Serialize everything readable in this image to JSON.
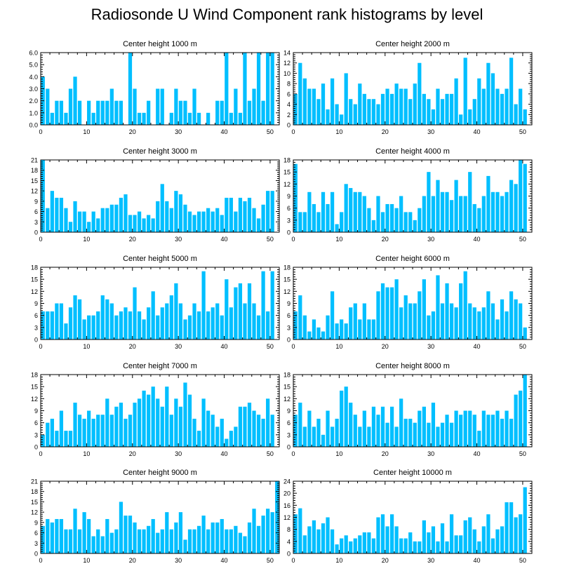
{
  "title": "Radiosonde U Wind Component rank histograms by level",
  "bar_color": "#00bfff",
  "chart_data": [
    {
      "type": "bar",
      "title": "Center height 1000 m",
      "xlabel": "",
      "ylabel": "",
      "xlim": [
        0,
        52
      ],
      "ylim": [
        0,
        6
      ],
      "yticks": [
        0,
        1,
        2,
        3,
        4,
        5,
        6
      ],
      "ytick_labels": [
        "0.0",
        "1.0",
        "2.0",
        "3.0",
        "4.0",
        "5.0",
        "6.0"
      ],
      "xticks": [
        0,
        10,
        20,
        30,
        40,
        50
      ],
      "values": [
        4,
        3,
        1,
        2,
        2,
        1,
        3,
        4,
        2,
        0,
        2,
        1,
        2,
        2,
        2,
        3,
        2,
        2,
        0,
        6,
        3,
        1,
        1,
        2,
        0,
        3,
        3,
        0,
        1,
        3,
        2,
        2,
        1,
        3,
        1,
        0,
        1,
        0,
        2,
        2,
        6,
        1,
        3,
        1,
        6,
        2,
        3,
        6,
        2,
        6,
        6
      ]
    },
    {
      "type": "bar",
      "title": "Center height 2000 m",
      "xlabel": "",
      "ylabel": "",
      "xlim": [
        0,
        52
      ],
      "ylim": [
        0,
        14
      ],
      "yticks": [
        0,
        2,
        4,
        6,
        8,
        10,
        12,
        14
      ],
      "ytick_labels": [
        "0",
        "2",
        "4",
        "6",
        "8",
        "10",
        "12",
        "14"
      ],
      "xticks": [
        0,
        10,
        20,
        30,
        40,
        50
      ],
      "values": [
        6,
        12,
        9,
        7,
        7,
        5,
        8,
        3,
        9,
        4,
        2,
        10,
        5,
        4,
        8,
        6,
        5,
        5,
        4,
        6,
        7,
        6,
        8,
        7,
        7,
        5,
        8,
        12,
        6,
        5,
        3,
        7,
        5,
        6,
        6,
        9,
        2,
        13,
        3,
        5,
        9,
        7,
        12,
        10,
        7,
        6,
        7,
        13,
        4,
        7,
        3
      ]
    },
    {
      "type": "bar",
      "title": "Center height 3000 m",
      "xlabel": "",
      "ylabel": "",
      "xlim": [
        0,
        52
      ],
      "ylim": [
        0,
        21
      ],
      "yticks": [
        0,
        3,
        6,
        9,
        12,
        15,
        18,
        21
      ],
      "ytick_labels": [
        "0",
        "3",
        "6",
        "9",
        "12",
        "15",
        "18",
        "21"
      ],
      "xticks": [
        0,
        10,
        20,
        30,
        40,
        50
      ],
      "values": [
        21,
        7,
        12,
        10,
        10,
        7,
        3,
        9,
        6,
        6,
        3,
        6,
        4,
        7,
        7,
        8,
        8,
        10,
        11,
        5,
        5,
        6,
        4,
        5,
        4,
        9,
        14,
        9,
        7,
        12,
        11,
        8,
        6,
        5,
        6,
        6,
        7,
        6,
        7,
        5,
        10,
        10,
        6,
        10,
        9,
        10,
        7,
        4,
        8,
        12,
        12
      ]
    },
    {
      "type": "bar",
      "title": "Center height 4000 m",
      "xlabel": "",
      "ylabel": "",
      "xlim": [
        0,
        52
      ],
      "ylim": [
        0,
        18
      ],
      "yticks": [
        0,
        3,
        6,
        9,
        12,
        15,
        18
      ],
      "ytick_labels": [
        "0",
        "3",
        "6",
        "9",
        "12",
        "15",
        "18"
      ],
      "xticks": [
        0,
        10,
        20,
        30,
        40,
        50
      ],
      "values": [
        17,
        5,
        5,
        10,
        7,
        5,
        10,
        7,
        10,
        2,
        5,
        12,
        11,
        10,
        10,
        9,
        6,
        3,
        9,
        5,
        7,
        7,
        6,
        9,
        5,
        5,
        3,
        6,
        9,
        15,
        9,
        13,
        10,
        10,
        8,
        13,
        9,
        9,
        15,
        7,
        6,
        9,
        14,
        10,
        10,
        9,
        10,
        13,
        12,
        18,
        17
      ]
    },
    {
      "type": "bar",
      "title": "Center height 5000 m",
      "xlabel": "",
      "ylabel": "",
      "xlim": [
        0,
        52
      ],
      "ylim": [
        0,
        18
      ],
      "yticks": [
        0,
        3,
        6,
        9,
        12,
        15,
        18
      ],
      "ytick_labels": [
        "0",
        "3",
        "6",
        "9",
        "12",
        "15",
        "18"
      ],
      "xticks": [
        0,
        10,
        20,
        30,
        40,
        50
      ],
      "values": [
        7,
        7,
        7,
        9,
        9,
        4,
        8,
        11,
        10,
        5,
        6,
        6,
        7,
        11,
        10,
        9,
        6,
        7,
        8,
        7,
        13,
        7,
        5,
        8,
        12,
        6,
        8,
        9,
        11,
        14,
        9,
        5,
        6,
        9,
        7,
        17,
        7,
        8,
        9,
        6,
        15,
        8,
        13,
        14,
        9,
        14,
        9,
        6,
        17,
        7,
        17
      ]
    },
    {
      "type": "bar",
      "title": "Center height 6000 m",
      "xlabel": "",
      "ylabel": "",
      "xlim": [
        0,
        52
      ],
      "ylim": [
        0,
        18
      ],
      "yticks": [
        0,
        3,
        6,
        9,
        12,
        15,
        18
      ],
      "ytick_labels": [
        "0",
        "3",
        "6",
        "9",
        "12",
        "15",
        "18"
      ],
      "xticks": [
        0,
        10,
        20,
        30,
        40,
        50
      ],
      "values": [
        7,
        11,
        6,
        2,
        5,
        3,
        2,
        6,
        12,
        4,
        5,
        4,
        8,
        9,
        5,
        9,
        5,
        5,
        12,
        14,
        13,
        13,
        15,
        8,
        11,
        9,
        9,
        12,
        15,
        6,
        7,
        16,
        9,
        14,
        9,
        8,
        14,
        17,
        9,
        8,
        7,
        8,
        12,
        9,
        5,
        10,
        7,
        12,
        10,
        9,
        3
      ]
    },
    {
      "type": "bar",
      "title": "Center height 7000 m",
      "xlabel": "",
      "ylabel": "",
      "xlim": [
        0,
        52
      ],
      "ylim": [
        0,
        18
      ],
      "yticks": [
        0,
        3,
        6,
        9,
        12,
        15,
        18
      ],
      "ytick_labels": [
        "0",
        "3",
        "6",
        "9",
        "12",
        "15",
        "18"
      ],
      "xticks": [
        0,
        10,
        20,
        30,
        40,
        50
      ],
      "values": [
        3,
        6,
        7,
        4,
        9,
        4,
        4,
        11,
        8,
        7,
        9,
        7,
        8,
        8,
        12,
        8,
        10,
        11,
        7,
        8,
        11,
        12,
        14,
        13,
        15,
        12,
        10,
        15,
        8,
        12,
        10,
        16,
        13,
        7,
        4,
        12,
        9,
        8,
        5,
        7,
        2,
        4,
        5,
        10,
        10,
        11,
        9,
        8,
        7,
        12,
        8
      ]
    },
    {
      "type": "bar",
      "title": "Center height 8000 m",
      "xlabel": "",
      "ylabel": "",
      "xlim": [
        0,
        52
      ],
      "ylim": [
        0,
        18
      ],
      "yticks": [
        0,
        3,
        6,
        9,
        12,
        15,
        18
      ],
      "ytick_labels": [
        "0",
        "3",
        "6",
        "9",
        "12",
        "15",
        "18"
      ],
      "xticks": [
        0,
        10,
        20,
        30,
        40,
        50
      ],
      "values": [
        8,
        11,
        5,
        9,
        5,
        7,
        3,
        9,
        5,
        7,
        14,
        15,
        11,
        8,
        5,
        9,
        5,
        10,
        8,
        10,
        6,
        10,
        5,
        12,
        7,
        7,
        6,
        9,
        10,
        6,
        11,
        5,
        6,
        8,
        6,
        9,
        8,
        9,
        9,
        8,
        4,
        9,
        8,
        8,
        9,
        7,
        9,
        7,
        13,
        14,
        18
      ]
    },
    {
      "type": "bar",
      "title": "Center height 9000 m",
      "xlabel": "",
      "ylabel": "",
      "xlim": [
        0,
        52
      ],
      "ylim": [
        0,
        21
      ],
      "yticks": [
        0,
        3,
        6,
        9,
        12,
        15,
        18,
        21
      ],
      "ytick_labels": [
        "0",
        "3",
        "6",
        "9",
        "12",
        "15",
        "18",
        "21"
      ],
      "xticks": [
        0,
        10,
        20,
        30,
        40,
        50
      ],
      "values": [
        8,
        10,
        9,
        10,
        10,
        7,
        7,
        13,
        7,
        12,
        10,
        5,
        7,
        5,
        10,
        6,
        7,
        15,
        11,
        11,
        9,
        7,
        7,
        8,
        10,
        6,
        7,
        12,
        7,
        9,
        12,
        4,
        7,
        7,
        8,
        11,
        7,
        9,
        9,
        10,
        7,
        7,
        8,
        6,
        5,
        9,
        13,
        8,
        11,
        13,
        12,
        21
      ]
    },
    {
      "type": "bar",
      "title": "Center height 10000 m",
      "xlabel": "",
      "ylabel": "",
      "xlim": [
        0,
        52
      ],
      "ylim": [
        0,
        24
      ],
      "yticks": [
        0,
        4,
        8,
        12,
        16,
        20,
        24
      ],
      "ytick_labels": [
        "0",
        "4",
        "8",
        "12",
        "16",
        "20",
        "24"
      ],
      "xticks": [
        0,
        10,
        20,
        30,
        40,
        50
      ],
      "values": [
        13,
        15,
        6,
        9,
        11,
        8,
        10,
        12,
        8,
        3,
        5,
        6,
        4,
        5,
        6,
        7,
        7,
        5,
        12,
        13,
        9,
        13,
        9,
        5,
        5,
        7,
        4,
        4,
        11,
        7,
        9,
        4,
        10,
        4,
        13,
        6,
        6,
        11,
        12,
        8,
        4,
        9,
        13,
        5,
        8,
        9,
        17,
        17,
        12,
        13,
        22
      ]
    }
  ]
}
